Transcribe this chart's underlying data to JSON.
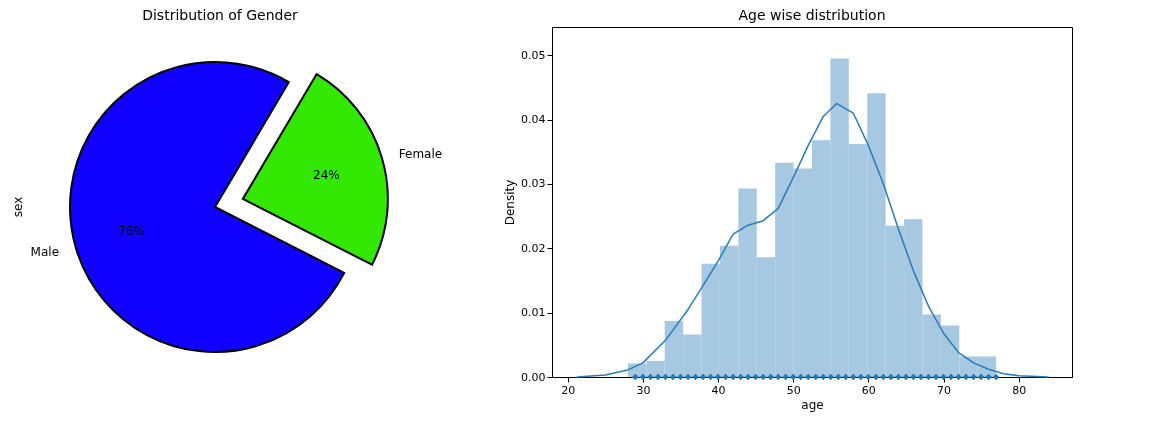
{
  "chart_data": [
    {
      "type": "pie",
      "title": "Distribution of Gender",
      "ylabel": "sex",
      "categories": [
        "Male",
        "Female"
      ],
      "values": [
        76,
        24
      ],
      "colors": [
        "#1000ff",
        "#33e800"
      ],
      "value_labels": [
        "76%",
        "24%"
      ]
    },
    {
      "type": "histogram",
      "title": "Age wise distribution",
      "xlabel": "age",
      "ylabel": "Density",
      "grid": false,
      "xlim": [
        17.9,
        87.1
      ],
      "xticks": [
        20,
        30,
        40,
        50,
        60,
        70,
        80
      ],
      "ylim": [
        0,
        0.0544
      ],
      "yticks": [
        {
          "value": 0,
          "label": "0.00"
        },
        {
          "value": 0.01,
          "label": "0.01"
        },
        {
          "value": 0.02,
          "label": "0.02"
        },
        {
          "value": 0.03,
          "label": "0.03"
        },
        {
          "value": 0.04,
          "label": "0.04"
        },
        {
          "value": 0.05,
          "label": "0.05"
        }
      ],
      "series": [
        {
          "type": "histogram",
          "color": "#a6c8e1",
          "bins": [
            28,
            30.45,
            32.9,
            35.35,
            37.8,
            40.25,
            42.7,
            45.15,
            47.6,
            50.05,
            52.5,
            54.95,
            57.4,
            59.85,
            62.3,
            64.75,
            67.2,
            69.65,
            72.1,
            74.55,
            77
          ],
          "values": [
            0.0021,
            0.0025,
            0.0087,
            0.0066,
            0.0176,
            0.0204,
            0.0293,
            0.0186,
            0.0333,
            0.0324,
            0.0368,
            0.0495,
            0.0362,
            0.0441,
            0.0235,
            0.0245,
            0.0097,
            0.008,
            0.0032,
            0.0032
          ]
        },
        {
          "type": "line",
          "color": "#2b7bba",
          "line_style": "solid",
          "x": [
            21.2,
            25,
            28,
            30,
            33,
            36,
            38,
            40,
            42,
            44,
            46,
            48,
            50,
            52,
            54,
            55.8,
            58,
            60,
            62,
            64,
            66,
            68,
            70,
            72,
            74,
            76,
            78,
            80,
            84
          ],
          "values": [
            0,
            0.0003,
            0.0011,
            0.0022,
            0.0057,
            0.0105,
            0.0142,
            0.018,
            0.0222,
            0.0236,
            0.0243,
            0.0262,
            0.031,
            0.036,
            0.0405,
            0.0425,
            0.041,
            0.036,
            0.03,
            0.023,
            0.0165,
            0.011,
            0.0068,
            0.0038,
            0.0022,
            0.0012,
            0.0005,
            0.0002,
            0
          ]
        },
        {
          "type": "scatter",
          "color": "#1f77b4",
          "marker": "diamond",
          "x": [
            29,
            30,
            31,
            32,
            33,
            34,
            35,
            36,
            37,
            38,
            39,
            40,
            41,
            42,
            43,
            44,
            45,
            46,
            47,
            48,
            49,
            50,
            51,
            52,
            53,
            54,
            55,
            56,
            57,
            58,
            59,
            60,
            61,
            62,
            63,
            64,
            65,
            66,
            67,
            68,
            69,
            70,
            71,
            72,
            73,
            74,
            75,
            76,
            77
          ],
          "values": [
            0,
            0,
            0,
            0,
            0,
            0,
            0,
            0,
            0,
            0,
            0,
            0,
            0,
            0,
            0,
            0,
            0,
            0,
            0,
            0,
            0,
            0,
            0,
            0,
            0,
            0,
            0,
            0,
            0,
            0,
            0,
            0,
            0,
            0,
            0,
            0,
            0,
            0,
            0,
            0,
            0,
            0,
            0,
            0,
            0,
            0,
            0,
            0,
            0
          ]
        }
      ]
    }
  ]
}
